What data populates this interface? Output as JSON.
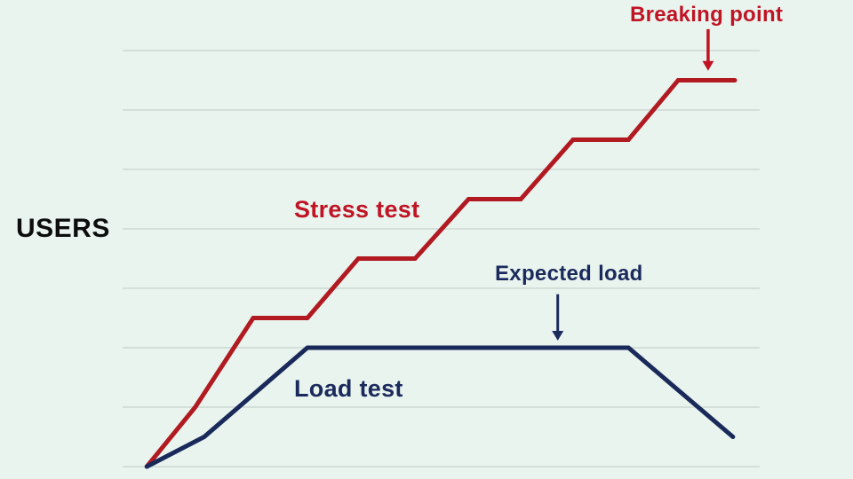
{
  "figure": {
    "background_color": "#e9f4ee",
    "gridline_color": "#cdd8d4",
    "stress_line_color": "#b11a21",
    "load_line_color": "#19295a",
    "label_red": "#c01425",
    "label_navy": "#1b2a5c",
    "ylabel_color": "#0d0d0d"
  },
  "labels": {
    "ylabel": "USERS",
    "stress": "Stress test",
    "load": "Load test",
    "expected": "Expected load",
    "breaking": "Breaking point"
  },
  "chart_data": {
    "type": "line",
    "title": "",
    "xlabel": "",
    "ylabel": "USERS",
    "xlim": [
      0,
      10
    ],
    "ylim": [
      0,
      7.5
    ],
    "grid": "horizontal-only",
    "legend": "inline-labels",
    "gridlines": {
      "horizontal_values": [
        0,
        1,
        2,
        3,
        4,
        5,
        6,
        7
      ],
      "vertical": false
    },
    "series": [
      {
        "name": "Stress test",
        "color": "#b11a21",
        "shape": "stair-step rising",
        "points": [
          [
            0.38,
            0
          ],
          [
            1.14,
            1.0
          ],
          [
            2.05,
            2.5
          ],
          [
            2.9,
            2.5
          ],
          [
            3.7,
            3.5
          ],
          [
            4.59,
            3.5
          ],
          [
            5.43,
            4.5
          ],
          [
            6.25,
            4.5
          ],
          [
            7.07,
            5.5
          ],
          [
            7.94,
            5.5
          ],
          [
            8.72,
            6.5
          ],
          [
            9.61,
            6.5
          ]
        ]
      },
      {
        "name": "Load test",
        "color": "#19295a",
        "shape": "ramp-plateau-decline",
        "points": [
          [
            0.38,
            0
          ],
          [
            1.28,
            0.5
          ],
          [
            2.9,
            2.0
          ],
          [
            7.94,
            2.0
          ],
          [
            9.58,
            0.5
          ]
        ]
      }
    ],
    "annotations": [
      {
        "text": "Breaking point",
        "color": "#c01425",
        "points_to": "top plateau of Stress test line"
      },
      {
        "text": "Expected load",
        "color": "#1b2a5c",
        "points_to": "plateau of Load test line"
      },
      {
        "text": "Stress test",
        "color": "#c01425",
        "points_to": "Stress test line"
      },
      {
        "text": "Load test",
        "color": "#1b2a5c",
        "points_to": "Load test line"
      },
      {
        "text": "USERS",
        "color": "#0d0d0d",
        "points_to": "y-axis"
      }
    ],
    "arrows": [
      {
        "x": 9.19,
        "from_y": 7.36,
        "to_y": 6.66,
        "color": "#c01425",
        "shaft_width": 3.5
      },
      {
        "x": 6.83,
        "from_y": 2.9,
        "to_y": 2.12,
        "color": "#1b2a5c",
        "shaft_width": 3
      }
    ]
  }
}
